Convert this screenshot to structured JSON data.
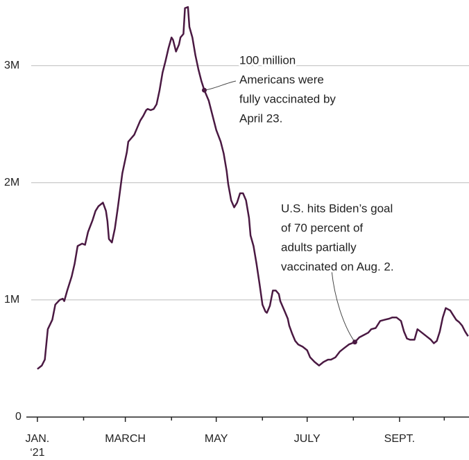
{
  "chart_data": {
    "type": "line",
    "x": [
      0,
      3,
      5,
      7,
      10,
      12,
      15,
      17,
      18,
      20,
      23,
      25,
      27,
      30,
      32,
      34,
      37,
      39,
      41,
      44,
      46,
      47,
      48,
      50,
      52,
      54,
      57,
      60,
      61,
      63,
      65,
      67,
      69,
      71,
      73,
      74,
      76,
      78,
      80,
      82,
      84,
      86,
      88,
      90,
      91,
      93,
      95,
      96,
      98,
      99,
      101,
      102,
      104,
      106,
      108,
      110,
      112,
      115,
      117,
      120,
      123,
      125,
      127,
      128,
      130,
      132,
      134,
      136,
      138,
      140,
      142,
      143,
      145,
      147,
      149,
      151,
      153,
      154,
      156,
      158,
      160,
      162,
      163,
      166,
      168,
      169,
      171,
      173,
      175,
      178,
      181,
      183,
      186,
      189,
      192,
      195,
      197,
      200,
      203,
      206,
      209,
      211,
      213,
      216,
      219,
      222,
      224,
      227,
      230,
      233,
      236,
      238,
      241,
      244,
      246,
      248,
      250,
      251,
      253,
      255,
      258,
      261,
      264,
      266,
      268,
      270,
      272,
      274,
      277,
      279,
      281,
      283,
      285,
      287,
      289
    ],
    "series": [
      {
        "color": "#4a1942",
        "values": [
          0.41,
          0.44,
          0.49,
          0.75,
          0.83,
          0.96,
          1.0,
          1.01,
          0.99,
          1.08,
          1.2,
          1.31,
          1.46,
          1.48,
          1.47,
          1.58,
          1.68,
          1.76,
          1.8,
          1.83,
          1.76,
          1.67,
          1.52,
          1.49,
          1.61,
          1.79,
          2.08,
          2.26,
          2.35,
          2.38,
          2.41,
          2.47,
          2.53,
          2.57,
          2.62,
          2.63,
          2.62,
          2.63,
          2.67,
          2.79,
          2.94,
          3.04,
          3.15,
          3.24,
          3.22,
          3.12,
          3.18,
          3.24,
          3.27,
          3.49,
          3.5,
          3.33,
          3.24,
          3.09,
          2.97,
          2.87,
          2.79,
          2.7,
          2.6,
          2.45,
          2.35,
          2.25,
          2.1,
          1.99,
          1.85,
          1.79,
          1.83,
          1.91,
          1.91,
          1.85,
          1.7,
          1.55,
          1.46,
          1.31,
          1.14,
          0.96,
          0.9,
          0.89,
          0.95,
          1.08,
          1.08,
          1.05,
          0.99,
          0.9,
          0.84,
          0.78,
          0.71,
          0.65,
          0.62,
          0.6,
          0.57,
          0.51,
          0.47,
          0.44,
          0.47,
          0.49,
          0.49,
          0.51,
          0.56,
          0.59,
          0.62,
          0.63,
          0.64,
          0.68,
          0.7,
          0.72,
          0.75,
          0.76,
          0.82,
          0.83,
          0.84,
          0.85,
          0.85,
          0.82,
          0.73,
          0.67,
          0.66,
          0.66,
          0.66,
          0.75,
          0.72,
          0.69,
          0.66,
          0.63,
          0.65,
          0.73,
          0.85,
          0.93,
          0.91,
          0.87,
          0.83,
          0.81,
          0.78,
          0.73,
          0.69
        ]
      }
    ],
    "xlim": [
      -7.4,
      289.6
    ],
    "xticks": [
      {
        "value": 0,
        "label": "JAN.\n‘21"
      },
      {
        "value": 59,
        "label": "MARCH"
      },
      {
        "value": 120,
        "label": "MAY"
      },
      {
        "value": 181,
        "label": "JULY"
      },
      {
        "value": 243,
        "label": "SEPT."
      }
    ],
    "xminorticks": [
      31,
      90,
      151,
      212,
      273
    ],
    "ylim": [
      0,
      3.56
    ],
    "yticks": [
      0,
      {
        "value": 1,
        "label": "1M"
      },
      {
        "value": 2,
        "label": "2M"
      },
      {
        "value": 3,
        "label": "3M"
      }
    ],
    "grid": true,
    "annotations": [
      {
        "text": [
          "100 million",
          "Americans were",
          "fully vaccinated by",
          "April 23."
        ],
        "x": 112,
        "y": 2.79
      },
      {
        "text": [
          "U.S. hits Biden’s goal",
          "of 70 percent of",
          "adults partially",
          "vaccinated on Aug. 2."
        ],
        "x": 213,
        "y": 0.64
      }
    ]
  }
}
